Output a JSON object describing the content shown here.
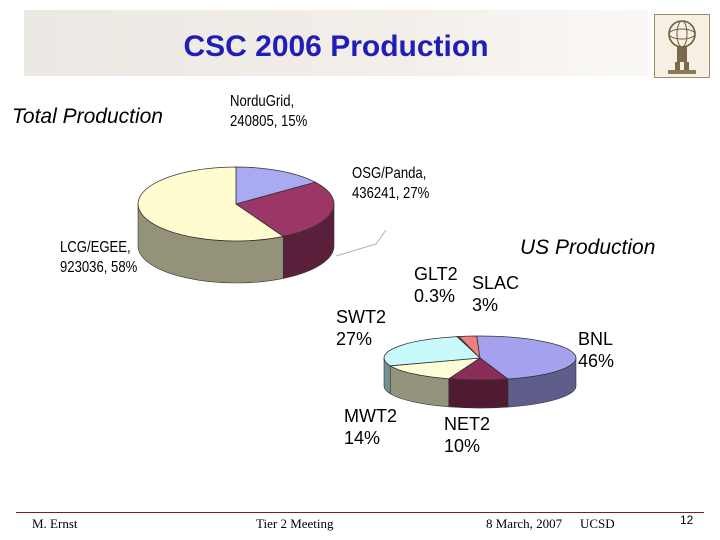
{
  "slide": {
    "title": "CSC 2006 Production",
    "total_label": "Total Production",
    "us_label": "US Production"
  },
  "footer": {
    "author": "M. Ernst",
    "meeting": "Tier 2 Meeting",
    "date": "8 March, 2007",
    "location": "UCSD",
    "page": "12"
  },
  "chart_data": [
    {
      "type": "pie",
      "title": "Total Production",
      "slices": [
        {
          "name": "NorduGrid",
          "value": 240805,
          "percent": 15,
          "label_lines": [
            "NorduGrid,",
            "240805, 15%"
          ],
          "color": "#a9aaf2"
        },
        {
          "name": "OSG/Panda",
          "value": 436241,
          "percent": 27,
          "label_lines": [
            "OSG/Panda,",
            "436241, 27%"
          ],
          "color": "#9b3666"
        },
        {
          "name": "LCG/EGEE",
          "value": 923036,
          "percent": 58,
          "label_lines": [
            "LCG/EGEE,",
            "923036, 58%"
          ],
          "color": "#fffdd0"
        }
      ]
    },
    {
      "type": "pie",
      "title": "US Production",
      "slices": [
        {
          "name": "BNL",
          "percent": 46,
          "label_lines": [
            "BNL",
            "46%"
          ],
          "color": "#a4a2ee"
        },
        {
          "name": "NET2",
          "percent": 10,
          "label_lines": [
            "NET2",
            "10%"
          ],
          "color": "#8c2c58"
        },
        {
          "name": "MWT2",
          "percent": 14,
          "label_lines": [
            "MWT2",
            "14%"
          ],
          "color": "#fffdd8"
        },
        {
          "name": "SWT2",
          "percent": 27,
          "label_lines": [
            "SWT2",
            "27%"
          ],
          "color": "#c8fafc"
        },
        {
          "name": "GLT2",
          "percent": 0.3,
          "label_lines": [
            "GLT2",
            "0.3%"
          ],
          "color": "#3c3c90"
        },
        {
          "name": "SLAC",
          "percent": 3,
          "label_lines": [
            "SLAC",
            "3%"
          ],
          "color": "#f08080"
        }
      ]
    }
  ]
}
